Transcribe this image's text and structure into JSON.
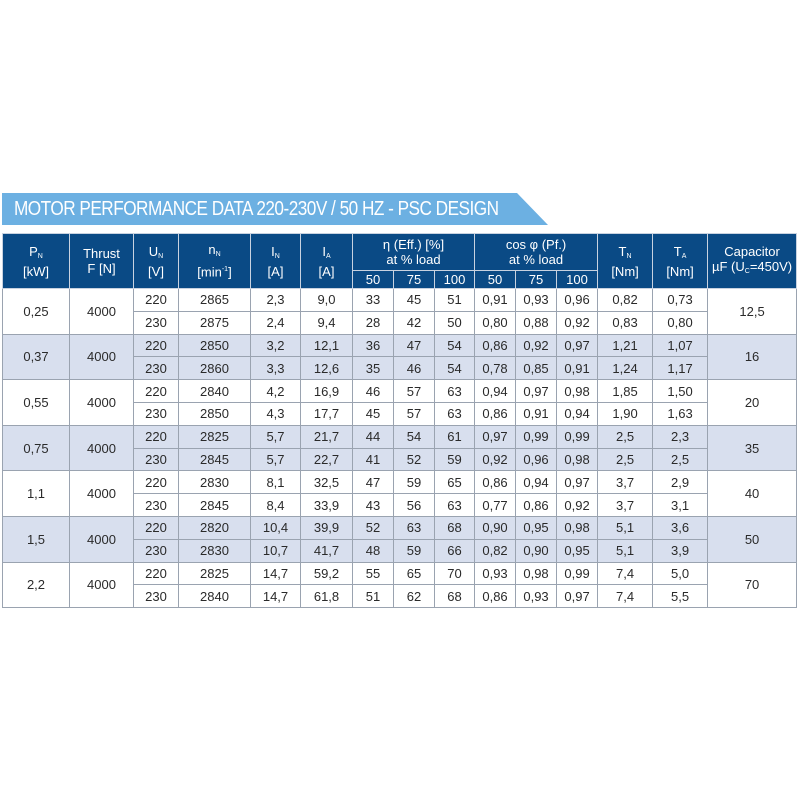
{
  "title": "MOTOR PERFORMANCE DATA 220-230V / 50 HZ - PSC DESIGN",
  "colors": {
    "banner": "#6cb0e2",
    "header": "#0a4a85",
    "alt_row": "#d8dfee"
  },
  "headers": {
    "pn": {
      "sym": "P",
      "sub": "N",
      "unit": "[kW]"
    },
    "thrust": {
      "line1": "Thrust",
      "line2": "F [N]"
    },
    "un": {
      "sym": "U",
      "sub": "N",
      "unit": "[V]"
    },
    "nn": {
      "sym": "n",
      "sub": "N",
      "unit_pre": "[min",
      "unit_sup": "-1",
      "unit_post": "]"
    },
    "in": {
      "sym": "I",
      "sub": "N",
      "unit": "[A]"
    },
    "ia": {
      "sym": "I",
      "sub": "A",
      "unit": "[A]"
    },
    "eff": {
      "line1": "η (Eff.) [%]",
      "line2": "at % load"
    },
    "pf": {
      "line1": "cos φ (Pf.)",
      "line2": "at % load"
    },
    "tn": {
      "sym": "T",
      "sub": "N",
      "unit": "[Nm]"
    },
    "ta": {
      "sym": "T",
      "sub": "A",
      "unit": "[Nm]"
    },
    "cap": {
      "line1": "Capacitor",
      "line2_pre": "µF (U",
      "line2_sub": "C",
      "line2_post": "=450V)"
    },
    "load_levels": [
      "50",
      "75",
      "100",
      "50",
      "75",
      "100"
    ]
  },
  "groups": [
    {
      "pn": "0,25",
      "thrust": "4000",
      "cap": "12,5",
      "rows": [
        [
          "220",
          "2865",
          "2,3",
          "9,0",
          "33",
          "45",
          "51",
          "0,91",
          "0,93",
          "0,96",
          "0,82",
          "0,73"
        ],
        [
          "230",
          "2875",
          "2,4",
          "9,4",
          "28",
          "42",
          "50",
          "0,80",
          "0,88",
          "0,92",
          "0,83",
          "0,80"
        ]
      ]
    },
    {
      "pn": "0,37",
      "thrust": "4000",
      "cap": "16",
      "rows": [
        [
          "220",
          "2850",
          "3,2",
          "12,1",
          "36",
          "47",
          "54",
          "0,86",
          "0,92",
          "0,97",
          "1,21",
          "1,07"
        ],
        [
          "230",
          "2860",
          "3,3",
          "12,6",
          "35",
          "46",
          "54",
          "0,78",
          "0,85",
          "0,91",
          "1,24",
          "1,17"
        ]
      ]
    },
    {
      "pn": "0,55",
      "thrust": "4000",
      "cap": "20",
      "rows": [
        [
          "220",
          "2840",
          "4,2",
          "16,9",
          "46",
          "57",
          "63",
          "0,94",
          "0,97",
          "0,98",
          "1,85",
          "1,50"
        ],
        [
          "230",
          "2850",
          "4,3",
          "17,7",
          "45",
          "57",
          "63",
          "0,86",
          "0,91",
          "0,94",
          "1,90",
          "1,63"
        ]
      ]
    },
    {
      "pn": "0,75",
      "thrust": "4000",
      "cap": "35",
      "rows": [
        [
          "220",
          "2825",
          "5,7",
          "21,7",
          "44",
          "54",
          "61",
          "0,97",
          "0,99",
          "0,99",
          "2,5",
          "2,3"
        ],
        [
          "230",
          "2845",
          "5,7",
          "22,7",
          "41",
          "52",
          "59",
          "0,92",
          "0,96",
          "0,98",
          "2,5",
          "2,5"
        ]
      ]
    },
    {
      "pn": "1,1",
      "thrust": "4000",
      "cap": "40",
      "rows": [
        [
          "220",
          "2830",
          "8,1",
          "32,5",
          "47",
          "59",
          "65",
          "0,86",
          "0,94",
          "0,97",
          "3,7",
          "2,9"
        ],
        [
          "230",
          "2845",
          "8,4",
          "33,9",
          "43",
          "56",
          "63",
          "0,77",
          "0,86",
          "0,92",
          "3,7",
          "3,1"
        ]
      ]
    },
    {
      "pn": "1,5",
      "thrust": "4000",
      "cap": "50",
      "rows": [
        [
          "220",
          "2820",
          "10,4",
          "39,9",
          "52",
          "63",
          "68",
          "0,90",
          "0,95",
          "0,98",
          "5,1",
          "3,6"
        ],
        [
          "230",
          "2830",
          "10,7",
          "41,7",
          "48",
          "59",
          "66",
          "0,82",
          "0,90",
          "0,95",
          "5,1",
          "3,9"
        ]
      ]
    },
    {
      "pn": "2,2",
      "thrust": "4000",
      "cap": "70",
      "rows": [
        [
          "220",
          "2825",
          "14,7",
          "59,2",
          "55",
          "65",
          "70",
          "0,93",
          "0,98",
          "0,99",
          "7,4",
          "5,0"
        ],
        [
          "230",
          "2840",
          "14,7",
          "61,8",
          "51",
          "62",
          "68",
          "0,86",
          "0,93",
          "0,97",
          "7,4",
          "5,5"
        ]
      ]
    }
  ]
}
